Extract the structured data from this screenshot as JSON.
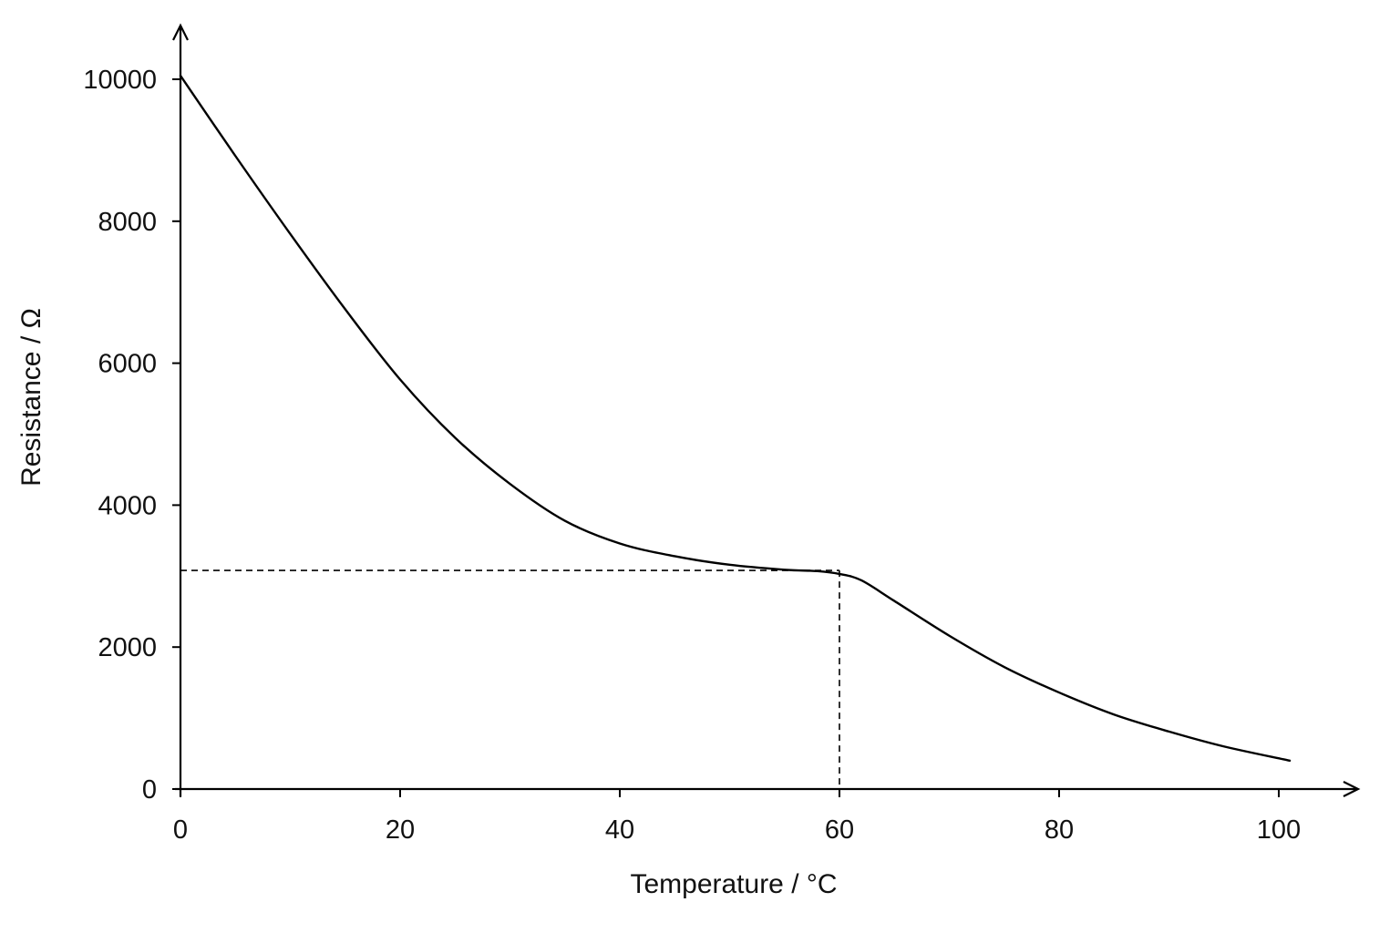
{
  "chart_data": {
    "type": "line",
    "xlabel": "Temperature / °C",
    "ylabel": "Resistance / Ω",
    "xlim": [
      0,
      107
    ],
    "ylim": [
      0,
      10700
    ],
    "x_ticks": [
      0,
      20,
      40,
      60,
      80,
      100
    ],
    "y_ticks": [
      0,
      2000,
      4000,
      6000,
      8000,
      10000
    ],
    "grid": false,
    "legend": "none",
    "series": [
      {
        "x": [
          0,
          5,
          10,
          15,
          20,
          25,
          30,
          35,
          40,
          45,
          50,
          55,
          58,
          60,
          62,
          65,
          70,
          75,
          80,
          85,
          90,
          95,
          101
        ],
        "y": [
          10050,
          8920,
          7820,
          6760,
          5770,
          4950,
          4300,
          3780,
          3460,
          3280,
          3160,
          3090,
          3070,
          3030,
          2940,
          2650,
          2160,
          1720,
          1360,
          1050,
          810,
          600,
          400
        ]
      }
    ],
    "reference_lines": [
      {
        "x": 60,
        "y": 3080
      }
    ],
    "colors": {
      "curve": "#000000",
      "axes": "#000000",
      "reference": "#000000"
    }
  }
}
